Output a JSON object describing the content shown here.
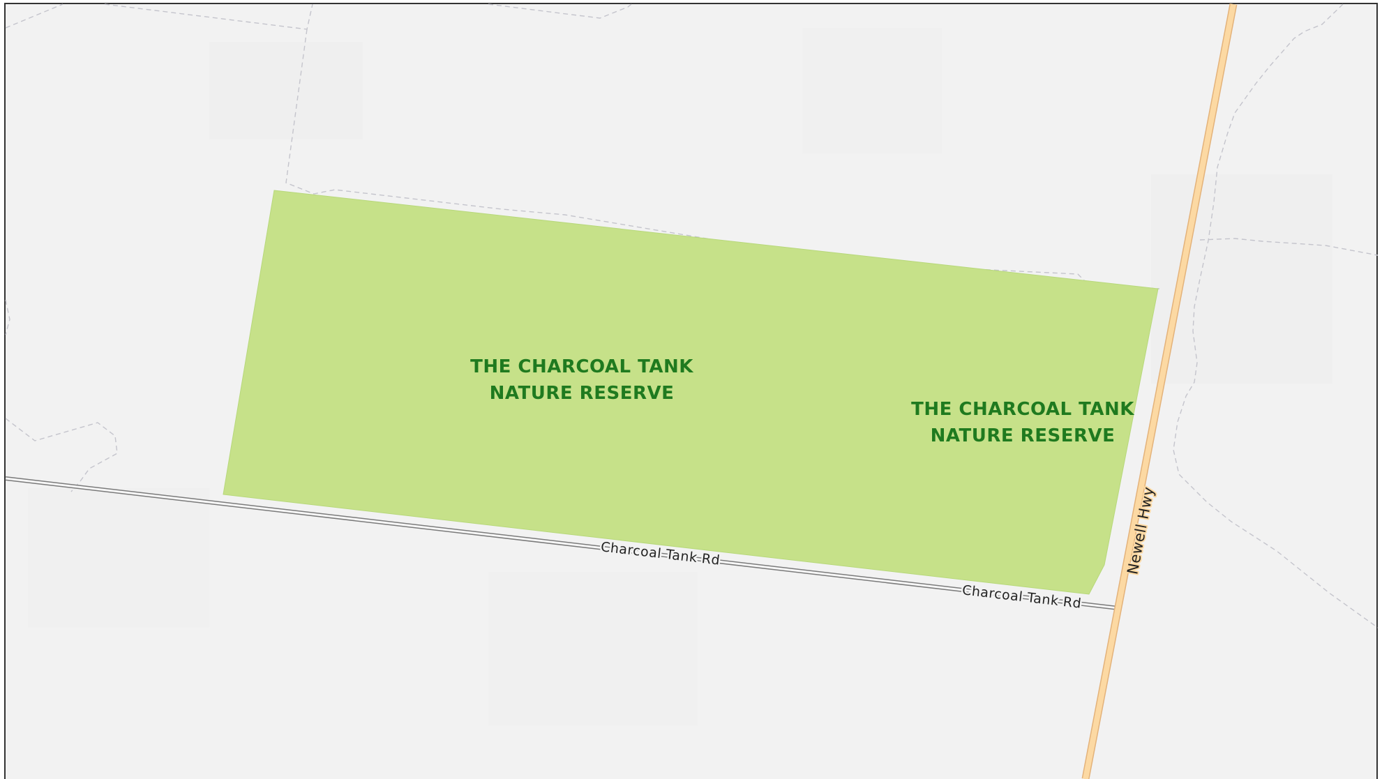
{
  "map": {
    "reserve": {
      "name_line1": "THE CHARCOAL TANK",
      "name_line2": "NATURE RESERVE",
      "fill_color": "#c6e189",
      "label_color": "#1f7a1f"
    },
    "roads": {
      "charcoal_tank_rd": "Charcoal Tank Rd",
      "newell_hwy": "Newell Hwy",
      "highway_color": "#fcd9a3",
      "highway_casing_color": "#e3b27a"
    },
    "background_color": "#f2f2f2"
  }
}
